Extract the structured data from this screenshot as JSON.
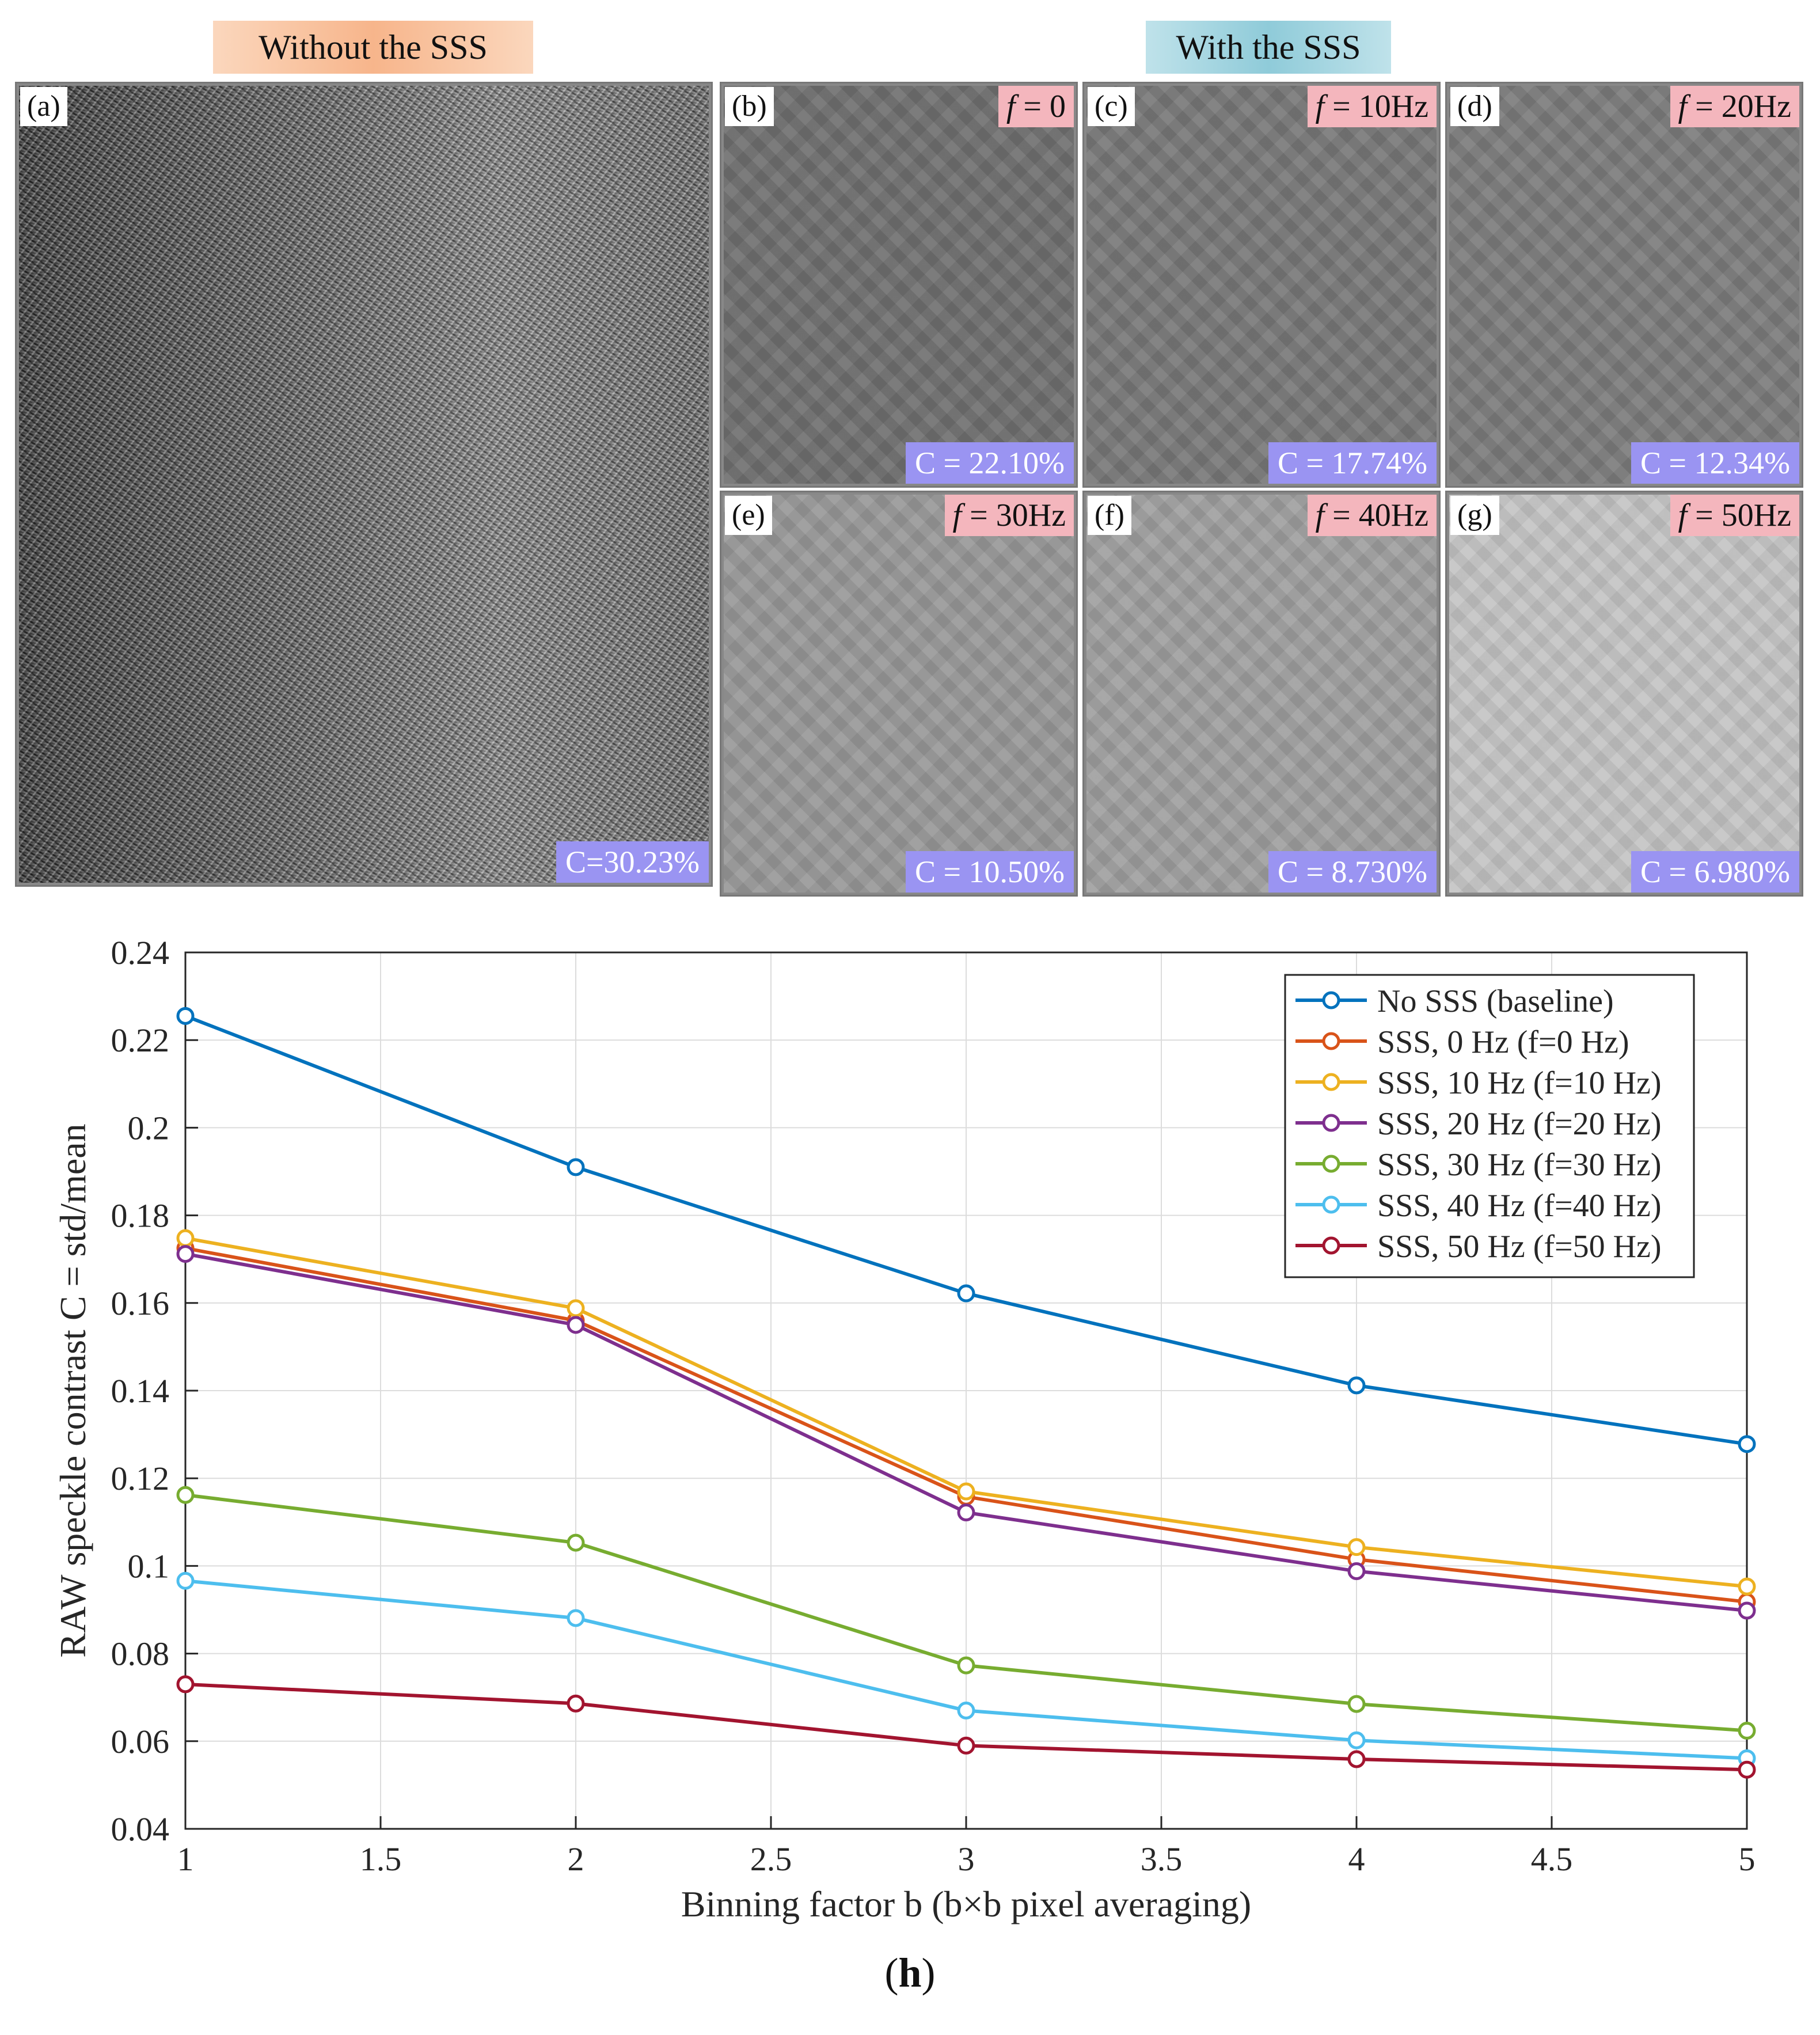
{
  "headers": {
    "left": "Without the SSS",
    "right": "With the SSS"
  },
  "panels": [
    {
      "label": "(a)",
      "f_tag": "",
      "contrast": "C=30.23%",
      "tone": "#6e6e6e"
    },
    {
      "label": "(b)",
      "f_tag": "= 0",
      "contrast": "C = 22.10%",
      "tone": "#6f6f6f"
    },
    {
      "label": "(c)",
      "f_tag": "= 10Hz",
      "contrast": "C = 17.74%",
      "tone": "#787878"
    },
    {
      "label": "(d)",
      "f_tag": "= 20Hz",
      "contrast": "C = 12.34%",
      "tone": "#7c7c7c"
    },
    {
      "label": "(e)",
      "f_tag": "= 30Hz",
      "contrast": "C = 10.50%",
      "tone": "#989898"
    },
    {
      "label": "(f)",
      "f_tag": "= 40Hz",
      "contrast": "C = 8.730%",
      "tone": "#9f9f9f"
    },
    {
      "label": "(g)",
      "f_tag": "= 50Hz",
      "contrast": "C = 6.980%",
      "tone": "#c4c4c4"
    }
  ],
  "f_symbol": "f",
  "caption": {
    "letter": "h",
    "open": "(",
    "close": ")"
  },
  "chart_data": {
    "type": "line",
    "title": "",
    "xlabel": "Binning factor b (b×b pixel averaging)",
    "ylabel": "RAW speckle contrast C = std/mean",
    "xlim": [
      1,
      5
    ],
    "ylim": [
      0.04,
      0.24
    ],
    "x_ticks": [
      1,
      1.5,
      2,
      2.5,
      3,
      3.5,
      4,
      4.5,
      5
    ],
    "x_tick_labels": [
      "1",
      "1.5",
      "2",
      "2.5",
      "3",
      "3.5",
      "4",
      "4.5",
      "5"
    ],
    "y_ticks": [
      0.04,
      0.06,
      0.08,
      0.1,
      0.12,
      0.14,
      0.16,
      0.18,
      0.2,
      0.22,
      0.24
    ],
    "y_tick_labels": [
      "0.04",
      "0.06",
      "0.08",
      "0.1",
      "0.12",
      "0.14",
      "0.16",
      "0.18",
      "0.2",
      "0.22",
      "0.24"
    ],
    "grid": true,
    "legend_position": "top-right",
    "x": [
      1,
      2,
      3,
      4,
      5
    ],
    "series": [
      {
        "name": "No SSS (baseline)",
        "color": "#0072bd",
        "values": [
          0.2255,
          0.191,
          0.1622,
          0.1412,
          0.1278
        ]
      },
      {
        "name": "SSS, 0 Hz (f=0 Hz)",
        "color": "#d95319",
        "values": [
          0.1725,
          0.156,
          0.1158,
          0.1015,
          0.0918
        ]
      },
      {
        "name": "SSS, 10 Hz (f=10 Hz)",
        "color": "#edb120",
        "values": [
          0.1748,
          0.1588,
          0.117,
          0.1043,
          0.0953
        ]
      },
      {
        "name": "SSS, 20 Hz (f=20 Hz)",
        "color": "#7e2f8e",
        "values": [
          0.1712,
          0.155,
          0.1122,
          0.0988,
          0.0898
        ]
      },
      {
        "name": "SSS, 30 Hz (f=30 Hz)",
        "color": "#77ac30",
        "values": [
          0.1162,
          0.1053,
          0.0773,
          0.0685,
          0.0624
        ]
      },
      {
        "name": "SSS, 40 Hz (f=40 Hz)",
        "color": "#4dbeee",
        "values": [
          0.0966,
          0.0881,
          0.067,
          0.0602,
          0.0561
        ]
      },
      {
        "name": "SSS, 50 Hz (f=50 Hz)",
        "color": "#a2142f",
        "values": [
          0.073,
          0.0686,
          0.059,
          0.0559,
          0.0535
        ]
      }
    ]
  }
}
